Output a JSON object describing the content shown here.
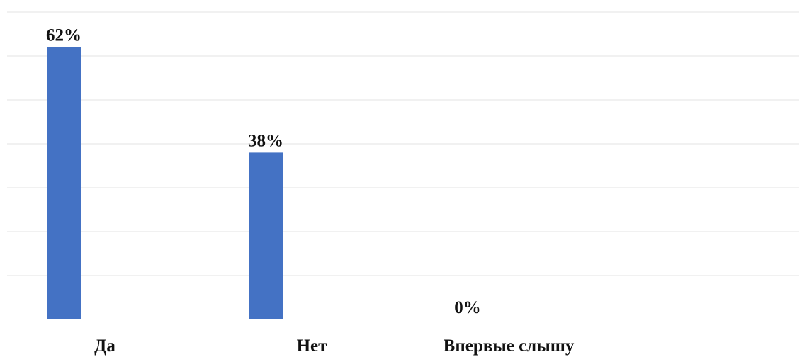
{
  "chart_data": {
    "type": "bar",
    "categories": [
      "Да",
      "Нет",
      "Впервые слышу"
    ],
    "values": [
      62,
      38,
      0
    ],
    "data_labels": [
      "62%",
      "38%",
      "0%"
    ],
    "ylim": [
      0,
      70
    ],
    "grid": true,
    "legend": "none",
    "colors": {
      "bar": "#4472C4",
      "grid": "#e3e3e3",
      "text": "#111111"
    }
  }
}
